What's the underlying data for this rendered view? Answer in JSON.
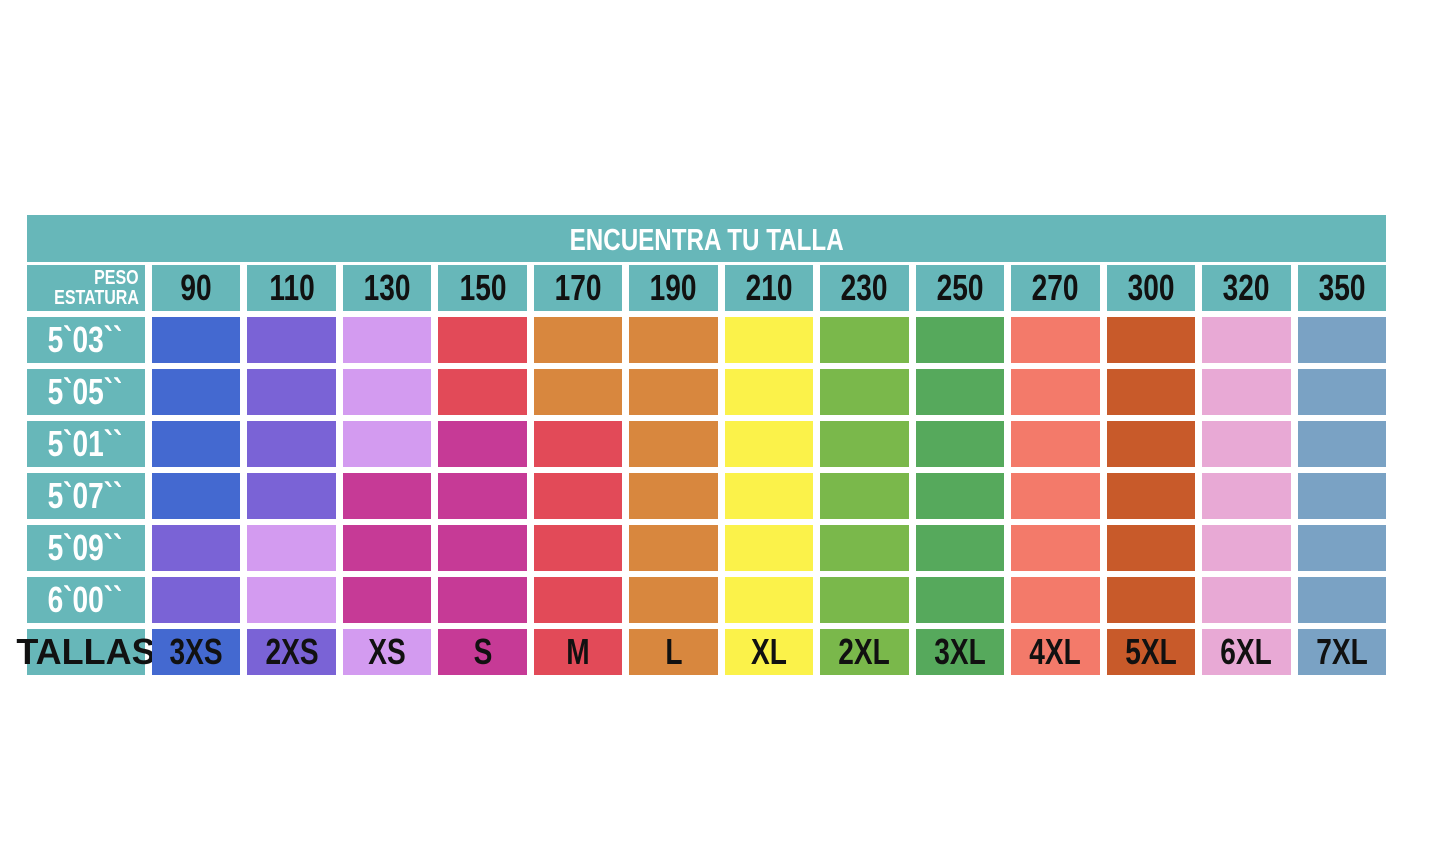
{
  "title": "ENCUENTRA TU TALLA",
  "corner": {
    "top": "PESO",
    "bottom": "ESTATURA"
  },
  "weights": [
    "90",
    "110",
    "130",
    "150",
    "170",
    "190",
    "210",
    "230",
    "250",
    "270",
    "300",
    "320",
    "350"
  ],
  "sizes_label": "TALLAS",
  "sizes": [
    "3XS",
    "2XS",
    "XS",
    "S",
    "M",
    "L",
    "XL",
    "2XL",
    "3XL",
    "4XL",
    "5XL",
    "6XL",
    "7XL"
  ],
  "size_colors": {
    "3XS": "#4469d0",
    "2XS": "#7a63d6",
    "XS": "#d39bf0",
    "S": "#c63a96",
    "M": "#e24a58",
    "L": "#d8873e",
    "XL": "#fbf24a",
    "2XL": "#7ab84b",
    "3XL": "#56a95c",
    "4XL": "#f37a6a",
    "5XL": "#c85a2a",
    "6XL": "#e8a9d5",
    "7XL": "#7aa2c4"
  },
  "rows": [
    {
      "height": "5`03``",
      "cells": [
        "3XS",
        "2XS",
        "XS",
        "M",
        "L",
        "L",
        "XL",
        "2XL",
        "3XL",
        "4XL",
        "5XL",
        "6XL",
        "7XL"
      ]
    },
    {
      "height": "5`05``",
      "cells": [
        "3XS",
        "2XS",
        "XS",
        "M",
        "L",
        "L",
        "XL",
        "2XL",
        "3XL",
        "4XL",
        "5XL",
        "6XL",
        "7XL"
      ]
    },
    {
      "height": "5`01``",
      "cells": [
        "3XS",
        "2XS",
        "XS",
        "S",
        "M",
        "L",
        "XL",
        "2XL",
        "3XL",
        "4XL",
        "5XL",
        "6XL",
        "7XL"
      ]
    },
    {
      "height": "5`07``",
      "cells": [
        "3XS",
        "2XS",
        "S",
        "S",
        "M",
        "L",
        "XL",
        "2XL",
        "3XL",
        "4XL",
        "5XL",
        "6XL",
        "7XL"
      ]
    },
    {
      "height": "5`09``",
      "cells": [
        "2XS",
        "XS",
        "S",
        "S",
        "M",
        "L",
        "XL",
        "2XL",
        "3XL",
        "4XL",
        "5XL",
        "6XL",
        "7XL"
      ]
    },
    {
      "height": "6`00``",
      "cells": [
        "2XS",
        "XS",
        "S",
        "S",
        "M",
        "L",
        "XL",
        "2XL",
        "3XL",
        "4XL",
        "5XL",
        "6XL",
        "7XL"
      ]
    }
  ]
}
